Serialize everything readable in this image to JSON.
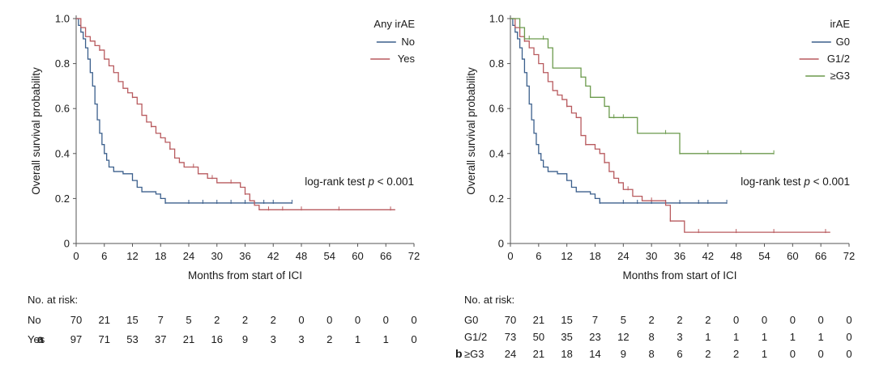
{
  "chart_data": [
    {
      "type": "line",
      "panel_label": "a",
      "xlabel": "Months from start of ICI",
      "ylabel": "Overall survival probability",
      "xlim": [
        0,
        72
      ],
      "ylim": [
        0,
        1.0
      ],
      "xticks": [
        "0",
        "6",
        "12",
        "18",
        "24",
        "30",
        "36",
        "42",
        "48",
        "54",
        "60",
        "66",
        "72"
      ],
      "yticks": [
        "0",
        "0.2",
        "0.4",
        "0.6",
        "0.8",
        "1.0"
      ],
      "legend_title": "Any irAE",
      "legend_position": "top-right",
      "annotation": {
        "prefix": "log-rank test ",
        "italic": "p",
        "suffix": " < 0.001"
      },
      "series": [
        {
          "name": "No",
          "color": "#3b5f8c",
          "points": [
            [
              0,
              1.0
            ],
            [
              0.5,
              0.97
            ],
            [
              1,
              0.94
            ],
            [
              1.5,
              0.91
            ],
            [
              2,
              0.87
            ],
            [
              2.5,
              0.82
            ],
            [
              3,
              0.76
            ],
            [
              3.5,
              0.7
            ],
            [
              4,
              0.62
            ],
            [
              4.5,
              0.55
            ],
            [
              5,
              0.49
            ],
            [
              5.5,
              0.44
            ],
            [
              6,
              0.4
            ],
            [
              6.5,
              0.37
            ],
            [
              7,
              0.34
            ],
            [
              8,
              0.32
            ],
            [
              10,
              0.31
            ],
            [
              12,
              0.28
            ],
            [
              13,
              0.25
            ],
            [
              14,
              0.23
            ],
            [
              17,
              0.22
            ],
            [
              18,
              0.2
            ],
            [
              19,
              0.18
            ],
            [
              46,
              0.18
            ]
          ],
          "censor_x": [
            19,
            24,
            27,
            30,
            33,
            36,
            40,
            42,
            46
          ]
        },
        {
          "name": "Yes",
          "color": "#b85a5e",
          "points": [
            [
              0,
              1.0
            ],
            [
              1,
              0.96
            ],
            [
              2,
              0.92
            ],
            [
              3,
              0.9
            ],
            [
              4,
              0.88
            ],
            [
              5,
              0.86
            ],
            [
              6,
              0.82
            ],
            [
              7,
              0.79
            ],
            [
              8,
              0.76
            ],
            [
              9,
              0.72
            ],
            [
              10,
              0.69
            ],
            [
              11,
              0.67
            ],
            [
              12,
              0.65
            ],
            [
              13,
              0.62
            ],
            [
              14,
              0.57
            ],
            [
              15,
              0.54
            ],
            [
              16,
              0.52
            ],
            [
              17,
              0.49
            ],
            [
              18,
              0.47
            ],
            [
              19,
              0.45
            ],
            [
              20,
              0.42
            ],
            [
              21,
              0.38
            ],
            [
              22,
              0.36
            ],
            [
              23,
              0.34
            ],
            [
              26,
              0.31
            ],
            [
              28,
              0.29
            ],
            [
              30,
              0.27
            ],
            [
              35,
              0.25
            ],
            [
              36,
              0.22
            ],
            [
              37,
              0.19
            ],
            [
              38,
              0.17
            ],
            [
              39,
              0.15
            ],
            [
              68,
              0.15
            ]
          ],
          "censor_x": [
            5,
            12,
            16,
            20,
            25,
            29,
            33,
            36,
            41,
            44,
            48,
            56,
            67
          ]
        }
      ],
      "risk_table": {
        "title": "No. at risk:",
        "rows": [
          {
            "label": "No",
            "values": [
              "70",
              "21",
              "15",
              "7",
              "5",
              "2",
              "2",
              "2",
              "0",
              "0",
              "0",
              "0",
              "0"
            ]
          },
          {
            "label": "Yes",
            "values": [
              "97",
              "71",
              "53",
              "37",
              "21",
              "16",
              "9",
              "3",
              "3",
              "2",
              "1",
              "1",
              "0"
            ]
          }
        ]
      }
    },
    {
      "type": "line",
      "panel_label": "b",
      "xlabel": "Months from start of ICI",
      "ylabel": "Overall survival probability",
      "xlim": [
        0,
        72
      ],
      "ylim": [
        0,
        1.0
      ],
      "xticks": [
        "0",
        "6",
        "12",
        "18",
        "24",
        "30",
        "36",
        "42",
        "48",
        "54",
        "60",
        "66",
        "72"
      ],
      "yticks": [
        "0",
        "0.2",
        "0.4",
        "0.6",
        "0.8",
        "1.0"
      ],
      "legend_title": "irAE",
      "legend_position": "top-right",
      "annotation": {
        "prefix": "log-rank test ",
        "italic": "p",
        "suffix": " < 0.001"
      },
      "series": [
        {
          "name": "G0",
          "color": "#3b5f8c",
          "points": [
            [
              0,
              1.0
            ],
            [
              0.5,
              0.97
            ],
            [
              1,
              0.94
            ],
            [
              1.5,
              0.91
            ],
            [
              2,
              0.87
            ],
            [
              2.5,
              0.82
            ],
            [
              3,
              0.76
            ],
            [
              3.5,
              0.7
            ],
            [
              4,
              0.62
            ],
            [
              4.5,
              0.55
            ],
            [
              5,
              0.49
            ],
            [
              5.5,
              0.44
            ],
            [
              6,
              0.4
            ],
            [
              6.5,
              0.37
            ],
            [
              7,
              0.34
            ],
            [
              8,
              0.32
            ],
            [
              10,
              0.31
            ],
            [
              12,
              0.28
            ],
            [
              13,
              0.25
            ],
            [
              14,
              0.23
            ],
            [
              17,
              0.22
            ],
            [
              18,
              0.2
            ],
            [
              19,
              0.18
            ],
            [
              46,
              0.18
            ]
          ],
          "censor_x": [
            19,
            24,
            27,
            30,
            33,
            36,
            40,
            42,
            46
          ]
        },
        {
          "name": "G1/2",
          "color": "#b85a5e",
          "points": [
            [
              0,
              1.0
            ],
            [
              1,
              0.96
            ],
            [
              2,
              0.92
            ],
            [
              3,
              0.9
            ],
            [
              4,
              0.87
            ],
            [
              5,
              0.84
            ],
            [
              6,
              0.8
            ],
            [
              7,
              0.76
            ],
            [
              8,
              0.72
            ],
            [
              9,
              0.68
            ],
            [
              10,
              0.66
            ],
            [
              11,
              0.64
            ],
            [
              12,
              0.61
            ],
            [
              13,
              0.58
            ],
            [
              14,
              0.56
            ],
            [
              15,
              0.48
            ],
            [
              16,
              0.44
            ],
            [
              18,
              0.42
            ],
            [
              19,
              0.4
            ],
            [
              20,
              0.36
            ],
            [
              21,
              0.32
            ],
            [
              22,
              0.29
            ],
            [
              23,
              0.27
            ],
            [
              24,
              0.24
            ],
            [
              26,
              0.21
            ],
            [
              28,
              0.19
            ],
            [
              33,
              0.17
            ],
            [
              34,
              0.1
            ],
            [
              37,
              0.05
            ],
            [
              68,
              0.05
            ]
          ],
          "censor_x": [
            3,
            12,
            16,
            20,
            25,
            30,
            34,
            40,
            48,
            56,
            67
          ]
        },
        {
          "name": "≥G3",
          "color": "#6b9a4c",
          "points": [
            [
              0,
              1.0
            ],
            [
              2,
              0.96
            ],
            [
              3,
              0.91
            ],
            [
              8,
              0.87
            ],
            [
              9,
              0.78
            ],
            [
              15,
              0.74
            ],
            [
              16,
              0.7
            ],
            [
              17,
              0.65
            ],
            [
              20,
              0.61
            ],
            [
              21,
              0.56
            ],
            [
              27,
              0.49
            ],
            [
              36,
              0.4
            ],
            [
              56,
              0.4
            ]
          ],
          "censor_x": [
            4,
            7,
            15,
            22,
            24,
            33,
            36,
            42,
            49,
            56
          ]
        }
      ],
      "risk_table": {
        "title": "No. at risk:",
        "rows": [
          {
            "label": "G0",
            "values": [
              "70",
              "21",
              "15",
              "7",
              "5",
              "2",
              "2",
              "2",
              "0",
              "0",
              "0",
              "0",
              "0"
            ]
          },
          {
            "label": "G1/2",
            "values": [
              "73",
              "50",
              "35",
              "23",
              "12",
              "8",
              "3",
              "1",
              "1",
              "1",
              "1",
              "1",
              "0"
            ]
          },
          {
            "label": "≥G3",
            "values": [
              "24",
              "21",
              "18",
              "14",
              "9",
              "8",
              "6",
              "2",
              "2",
              "1",
              "0",
              "0",
              "0"
            ]
          }
        ]
      }
    }
  ]
}
